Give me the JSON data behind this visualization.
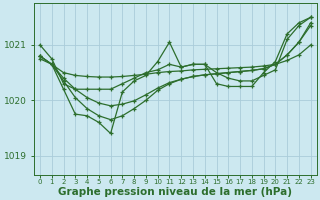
{
  "bg_color": "#cce8f0",
  "grid_color": "#aaccda",
  "line_color": "#2d6e2d",
  "xlabel": "Graphe pression niveau de la mer (hPa)",
  "xlabel_fontsize": 7.5,
  "ylim": [
    1018.65,
    1021.75
  ],
  "xlim": [
    -0.5,
    23.5
  ],
  "yticks": [
    1019,
    1020,
    1021
  ],
  "xticks": [
    0,
    1,
    2,
    3,
    4,
    5,
    6,
    7,
    8,
    9,
    10,
    11,
    12,
    13,
    14,
    15,
    16,
    17,
    18,
    19,
    20,
    21,
    22,
    23
  ],
  "series_flat": [
    1020.8,
    1020.65,
    1020.5,
    1020.45,
    1020.43,
    1020.42,
    1020.42,
    1020.43,
    1020.45,
    1020.47,
    1020.5,
    1020.52,
    1020.53,
    1020.55,
    1020.56,
    1020.57,
    1020.58,
    1020.59,
    1020.6,
    1020.62,
    1020.65,
    1020.72,
    1020.82,
    1021.0
  ],
  "series_mid1": [
    1020.8,
    1020.65,
    1020.4,
    1020.2,
    1020.05,
    1019.95,
    1019.9,
    1019.93,
    1019.99,
    1020.1,
    1020.22,
    1020.32,
    1020.38,
    1020.43,
    1020.46,
    1020.48,
    1020.5,
    1020.52,
    1020.54,
    1020.57,
    1020.65,
    1020.82,
    1021.05,
    1021.35
  ],
  "series_mid2": [
    1020.8,
    1020.65,
    1020.35,
    1020.05,
    1019.85,
    1019.72,
    1019.65,
    1019.72,
    1019.85,
    1020.0,
    1020.18,
    1020.3,
    1020.38,
    1020.43,
    1020.46,
    1020.48,
    1020.5,
    1020.52,
    1020.54,
    1020.57,
    1020.65,
    1020.82,
    1021.05,
    1021.4
  ],
  "series_jagged": [
    1020.75,
    1020.65,
    1020.2,
    1019.75,
    1019.72,
    1019.6,
    1019.4,
    1020.15,
    1020.35,
    1020.45,
    1020.7,
    1021.05,
    1020.6,
    1020.65,
    1020.65,
    1020.3,
    1020.25,
    1020.25,
    1020.25,
    1020.5,
    1020.7,
    1021.2,
    1021.4,
    1021.5
  ],
  "series_top": [
    1021.0,
    1020.75,
    1020.3,
    1020.2,
    1020.2,
    1020.2,
    1020.2,
    1020.3,
    1020.4,
    1020.5,
    1020.55,
    1020.65,
    1020.6,
    1020.65,
    1020.65,
    1020.5,
    1020.4,
    1020.35,
    1020.35,
    1020.45,
    1020.55,
    1021.1,
    1021.35,
    1021.5
  ]
}
